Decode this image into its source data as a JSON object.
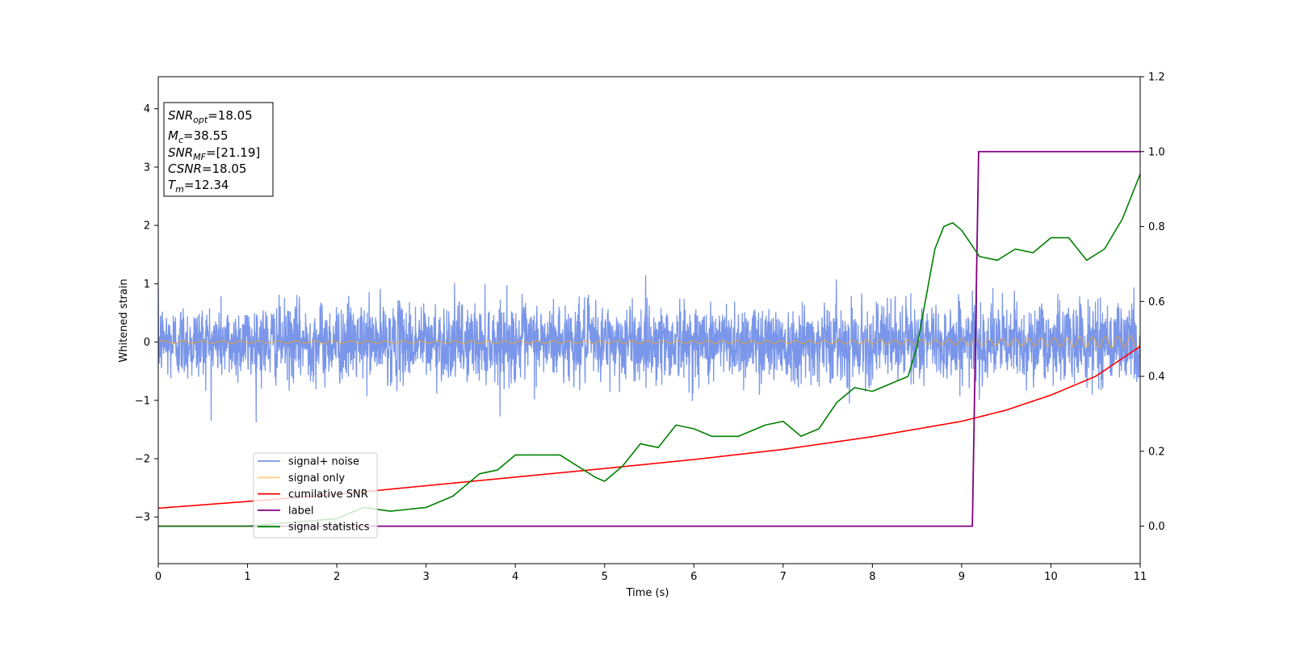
{
  "chart_data": {
    "type": "line",
    "xlabel": "Time (s)",
    "ylabel": "Whitened strain",
    "xlim": [
      0,
      11
    ],
    "ylim": [
      -3.8,
      4.55
    ],
    "ylim_right": [
      -0.1,
      1.2
    ],
    "x_ticks": [
      "0",
      "1",
      "2",
      "3",
      "4",
      "5",
      "6",
      "7",
      "8",
      "9",
      "10",
      "11"
    ],
    "y_ticks": [
      "−3",
      "−2",
      "−1",
      "0",
      "1",
      "2",
      "3",
      "4"
    ],
    "y_ticks_right": [
      "0.0",
      "0.2",
      "0.4",
      "0.6",
      "0.8",
      "1.0",
      "1.2"
    ],
    "legend_position": "lower-left",
    "annotation": {
      "snr_opt": {
        "sym": "SNR",
        "sub": "opt",
        "value": "=18.05"
      },
      "mc": {
        "sym": "M",
        "sub": "c",
        "value": "=38.55"
      },
      "snr_mf": {
        "sym": "SNR",
        "sub": "MF",
        "value": "=[21.19]"
      },
      "csnr": {
        "sym": "CSNR",
        "sub": "",
        "value": "=18.05"
      },
      "tm": {
        "sym": "T",
        "sub": "m",
        "value": "=12.34"
      }
    },
    "series": [
      {
        "name": "signal+ noise",
        "color": "#4169e1",
        "axis": "left",
        "noise_std": 0.33,
        "note_visual": "noisy"
      },
      {
        "name": "signal only",
        "color": "#ffa500",
        "axis": "left"
      },
      {
        "name": "cumilative SNR",
        "color": "#ff0000",
        "axis": "right",
        "x": [
          0,
          1,
          2,
          3,
          4,
          5,
          6,
          7,
          8,
          9,
          9.5,
          10,
          10.5,
          11
        ],
        "y": [
          0.048,
          0.066,
          0.085,
          0.108,
          0.131,
          0.154,
          0.178,
          0.205,
          0.239,
          0.28,
          0.31,
          0.35,
          0.4,
          0.48
        ]
      },
      {
        "name": "label",
        "color": "#800080",
        "axis": "right",
        "x": [
          0,
          9.12,
          9.19,
          11
        ],
        "y": [
          0.0,
          0.0,
          1.0,
          1.0
        ]
      },
      {
        "name": "signal statistics",
        "color": "#008000",
        "axis": "right",
        "x": [
          0,
          0.5,
          1,
          1.5,
          2,
          2.3,
          2.6,
          3,
          3.3,
          3.6,
          3.8,
          4,
          4.3,
          4.5,
          4.7,
          4.9,
          5,
          5.2,
          5.4,
          5.6,
          5.8,
          6,
          6.2,
          6.5,
          6.8,
          7,
          7.2,
          7.4,
          7.6,
          7.8,
          8,
          8.2,
          8.4,
          8.5,
          8.6,
          8.7,
          8.8,
          8.9,
          9,
          9.2,
          9.4,
          9.6,
          9.8,
          10,
          10.2,
          10.4,
          10.6,
          10.8,
          11
        ],
        "y": [
          0.0,
          0.0,
          0.0,
          0.01,
          0.02,
          0.05,
          0.04,
          0.05,
          0.08,
          0.14,
          0.15,
          0.19,
          0.19,
          0.19,
          0.16,
          0.13,
          0.12,
          0.16,
          0.22,
          0.21,
          0.27,
          0.26,
          0.24,
          0.24,
          0.27,
          0.28,
          0.24,
          0.26,
          0.33,
          0.37,
          0.36,
          0.38,
          0.4,
          0.48,
          0.61,
          0.74,
          0.8,
          0.81,
          0.79,
          0.72,
          0.71,
          0.74,
          0.73,
          0.77,
          0.77,
          0.71,
          0.74,
          0.82,
          0.94
        ]
      }
    ]
  }
}
